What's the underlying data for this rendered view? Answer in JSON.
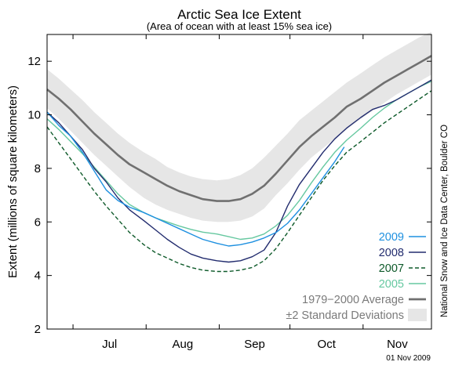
{
  "chart_data": {
    "type": "line",
    "title": "Arctic Sea Ice Extent",
    "subtitle": "(Area of ocean with at least 15% sea ice)",
    "ylabel": "Extent (millions of square kilometers)",
    "xlabel": "",
    "ylim": [
      2,
      13
    ],
    "xlim": [
      "2009-06-20",
      "2009-11-30"
    ],
    "y_ticks": [
      2,
      4,
      6,
      8,
      10,
      12
    ],
    "x_tick_labels": [
      "Jul",
      "Aug",
      "Sep",
      "Oct",
      "Nov"
    ],
    "grid": false,
    "legend_position": "lower-right",
    "credit": "National Snow and Ice Data Center, Boulder CO",
    "date_stamp": "01 Nov 2009",
    "series": [
      {
        "name": "2009",
        "color": "#1e90e0",
        "style": "solid",
        "x": [
          "2009-06-20",
          "2009-06-25",
          "2009-06-30",
          "2009-07-05",
          "2009-07-10",
          "2009-07-15",
          "2009-07-20",
          "2009-07-25",
          "2009-07-31",
          "2009-08-05",
          "2009-08-10",
          "2009-08-15",
          "2009-08-20",
          "2009-08-25",
          "2009-08-31",
          "2009-09-05",
          "2009-09-10",
          "2009-09-15",
          "2009-09-20",
          "2009-09-25",
          "2009-09-30",
          "2009-10-05",
          "2009-10-10",
          "2009-10-15",
          "2009-10-20",
          "2009-10-24"
        ],
        "values": [
          10.1,
          9.6,
          9.2,
          8.6,
          7.9,
          7.2,
          6.8,
          6.55,
          6.35,
          6.15,
          5.95,
          5.75,
          5.55,
          5.35,
          5.2,
          5.1,
          5.15,
          5.25,
          5.4,
          5.6,
          5.95,
          6.45,
          7.05,
          7.65,
          8.25,
          8.8
        ]
      },
      {
        "name": "2008",
        "color": "#222c6e",
        "style": "solid",
        "x": [
          "2009-06-20",
          "2009-06-25",
          "2009-06-30",
          "2009-07-05",
          "2009-07-10",
          "2009-07-15",
          "2009-07-20",
          "2009-07-25",
          "2009-07-31",
          "2009-08-05",
          "2009-08-10",
          "2009-08-15",
          "2009-08-20",
          "2009-08-25",
          "2009-08-31",
          "2009-09-05",
          "2009-09-10",
          "2009-09-15",
          "2009-09-20",
          "2009-09-25",
          "2009-09-30",
          "2009-10-05",
          "2009-10-10",
          "2009-10-15",
          "2009-10-20",
          "2009-10-25",
          "2009-10-31",
          "2009-11-05",
          "2009-11-10",
          "2009-11-15",
          "2009-11-20",
          "2009-11-25",
          "2009-11-30"
        ],
        "values": [
          10.1,
          9.7,
          9.2,
          8.7,
          8.0,
          7.5,
          6.9,
          6.45,
          6.05,
          5.7,
          5.35,
          5.05,
          4.8,
          4.65,
          4.55,
          4.5,
          4.55,
          4.7,
          4.95,
          5.6,
          6.6,
          7.4,
          8.0,
          8.6,
          9.1,
          9.5,
          9.9,
          10.2,
          10.35,
          10.55,
          10.8,
          11.05,
          11.3
        ]
      },
      {
        "name": "2007",
        "color": "#0e5a2a",
        "style": "dashed",
        "x": [
          "2009-06-20",
          "2009-06-25",
          "2009-06-30",
          "2009-07-05",
          "2009-07-10",
          "2009-07-15",
          "2009-07-20",
          "2009-07-25",
          "2009-07-31",
          "2009-08-05",
          "2009-08-10",
          "2009-08-15",
          "2009-08-20",
          "2009-08-25",
          "2009-08-31",
          "2009-09-05",
          "2009-09-10",
          "2009-09-15",
          "2009-09-20",
          "2009-09-25",
          "2009-09-30",
          "2009-10-05",
          "2009-10-10",
          "2009-10-15",
          "2009-10-20",
          "2009-10-25",
          "2009-10-31",
          "2009-11-05",
          "2009-11-10",
          "2009-11-15",
          "2009-11-20",
          "2009-11-25",
          "2009-11-30"
        ],
        "values": [
          9.55,
          8.95,
          8.35,
          7.75,
          7.15,
          6.6,
          6.1,
          5.6,
          5.15,
          4.85,
          4.65,
          4.45,
          4.3,
          4.2,
          4.15,
          4.15,
          4.2,
          4.3,
          4.55,
          5.0,
          5.6,
          6.25,
          6.9,
          7.55,
          8.1,
          8.6,
          9.0,
          9.35,
          9.7,
          10.0,
          10.3,
          10.6,
          10.9
        ]
      },
      {
        "name": "2005",
        "color": "#66c8a0",
        "style": "solid",
        "x": [
          "2009-06-20",
          "2009-06-25",
          "2009-06-30",
          "2009-07-05",
          "2009-07-10",
          "2009-07-15",
          "2009-07-20",
          "2009-07-25",
          "2009-07-31",
          "2009-08-05",
          "2009-08-10",
          "2009-08-15",
          "2009-08-20",
          "2009-08-25",
          "2009-08-31",
          "2009-09-05",
          "2009-09-10",
          "2009-09-15",
          "2009-09-20",
          "2009-09-25",
          "2009-09-30",
          "2009-10-05",
          "2009-10-10",
          "2009-10-15",
          "2009-10-20",
          "2009-10-25",
          "2009-10-31",
          "2009-11-05",
          "2009-11-10",
          "2009-11-15",
          "2009-11-20",
          "2009-11-25",
          "2009-11-30"
        ],
        "values": [
          9.85,
          9.45,
          9.0,
          8.55,
          8.05,
          7.55,
          7.05,
          6.65,
          6.35,
          6.15,
          6.0,
          5.85,
          5.72,
          5.62,
          5.55,
          5.45,
          5.35,
          5.4,
          5.55,
          5.85,
          6.25,
          6.8,
          7.45,
          8.05,
          8.6,
          9.05,
          9.5,
          9.9,
          10.25,
          10.55,
          10.8,
          11.05,
          11.25
        ]
      },
      {
        "name": "1979−2000 Average",
        "color": "#707070",
        "style": "solid-thick",
        "x": [
          "2009-06-20",
          "2009-06-25",
          "2009-06-30",
          "2009-07-05",
          "2009-07-10",
          "2009-07-15",
          "2009-07-20",
          "2009-07-25",
          "2009-07-31",
          "2009-08-05",
          "2009-08-10",
          "2009-08-15",
          "2009-08-20",
          "2009-08-25",
          "2009-08-31",
          "2009-09-05",
          "2009-09-10",
          "2009-09-15",
          "2009-09-20",
          "2009-09-25",
          "2009-09-30",
          "2009-10-05",
          "2009-10-10",
          "2009-10-15",
          "2009-10-20",
          "2009-10-25",
          "2009-10-31",
          "2009-11-05",
          "2009-11-10",
          "2009-11-15",
          "2009-11-20",
          "2009-11-25",
          "2009-11-30"
        ],
        "values": [
          10.95,
          10.6,
          10.2,
          9.75,
          9.3,
          8.9,
          8.5,
          8.15,
          7.85,
          7.6,
          7.35,
          7.15,
          7.0,
          6.85,
          6.78,
          6.78,
          6.85,
          7.05,
          7.35,
          7.8,
          8.3,
          8.8,
          9.2,
          9.55,
          9.9,
          10.3,
          10.6,
          10.9,
          11.2,
          11.45,
          11.7,
          11.95,
          12.2
        ]
      }
    ],
    "std_band": {
      "name": "±2 Standard Deviations",
      "color": "#e6e6e6",
      "x": [
        "2009-06-20",
        "2009-06-25",
        "2009-06-30",
        "2009-07-05",
        "2009-07-10",
        "2009-07-15",
        "2009-07-20",
        "2009-07-25",
        "2009-07-31",
        "2009-08-05",
        "2009-08-10",
        "2009-08-15",
        "2009-08-20",
        "2009-08-25",
        "2009-08-31",
        "2009-09-05",
        "2009-09-10",
        "2009-09-15",
        "2009-09-20",
        "2009-09-25",
        "2009-09-30",
        "2009-10-05",
        "2009-10-10",
        "2009-10-15",
        "2009-10-20",
        "2009-10-25",
        "2009-10-31",
        "2009-11-05",
        "2009-11-10",
        "2009-11-15",
        "2009-11-20",
        "2009-11-25",
        "2009-11-30"
      ],
      "upper": [
        11.7,
        11.35,
        10.95,
        10.55,
        10.1,
        9.7,
        9.3,
        8.95,
        8.6,
        8.35,
        8.05,
        7.85,
        7.7,
        7.6,
        7.55,
        7.6,
        7.75,
        8.0,
        8.4,
        8.85,
        9.3,
        9.8,
        10.15,
        10.5,
        10.85,
        11.2,
        11.55,
        11.85,
        12.15,
        12.4,
        12.65,
        12.9,
        13.1
      ],
      "lower": [
        10.25,
        9.85,
        9.4,
        8.95,
        8.5,
        8.1,
        7.7,
        7.3,
        6.9,
        6.65,
        6.45,
        6.3,
        6.15,
        6.05,
        6.0,
        6.0,
        6.05,
        6.2,
        6.5,
        7.0,
        7.45,
        7.95,
        8.4,
        8.75,
        9.1,
        9.45,
        9.85,
        10.15,
        10.45,
        10.75,
        11.0,
        11.25,
        11.5
      ]
    }
  }
}
